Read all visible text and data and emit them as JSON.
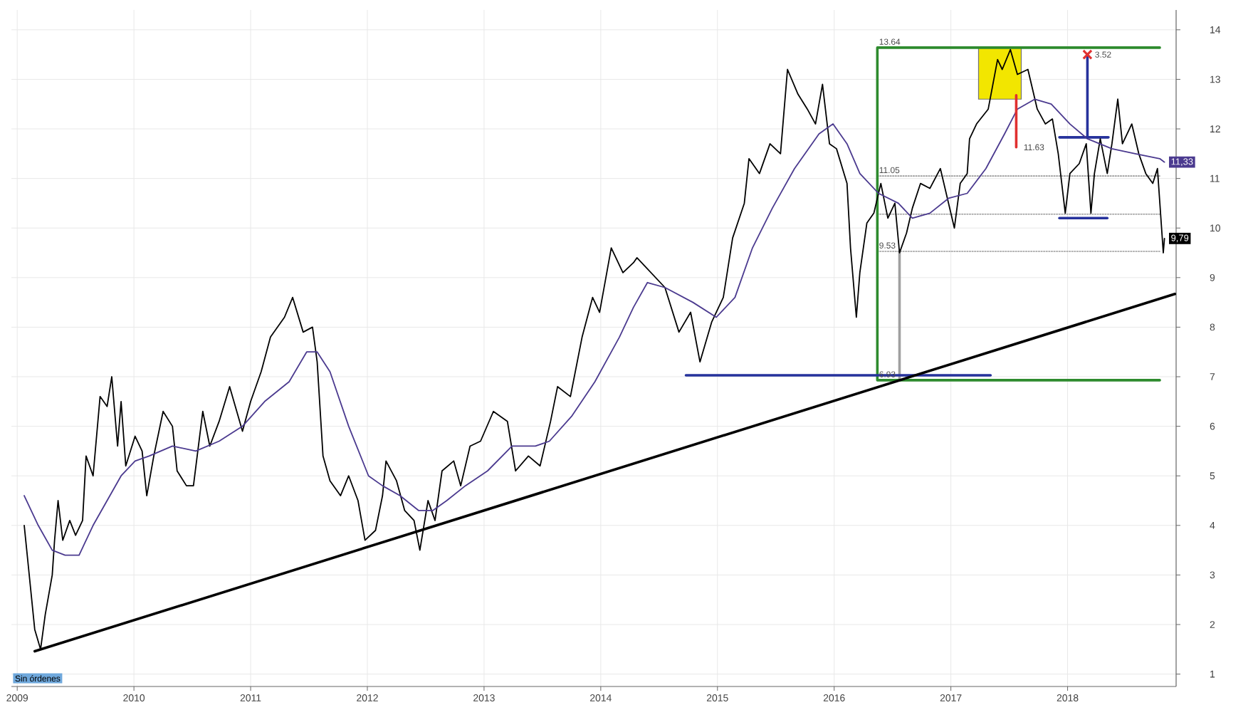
{
  "chart_data": {
    "type": "line",
    "xlim": [
      2008.95,
      2018.93
    ],
    "xticks": [
      2009,
      2010,
      2011,
      2012,
      2013,
      2014,
      2015,
      2016,
      2017,
      2018
    ],
    "ylim": [
      0.75,
      14.4
    ],
    "yticks": [
      1,
      2,
      3,
      4,
      5,
      6,
      7,
      8,
      9,
      10,
      11,
      12,
      13,
      14
    ],
    "grid": true,
    "annotations": [
      {
        "text": "13.64",
        "x": 2016.37,
        "y": 13.64
      },
      {
        "text": "11.05",
        "x": 2016.37,
        "y": 11.05
      },
      {
        "text": "9.53",
        "x": 2016.37,
        "y": 9.53
      },
      {
        "text": "6.93",
        "x": 2016.37,
        "y": 6.93
      },
      {
        "text": "11.63",
        "x": 2017.56,
        "y": 11.63
      },
      {
        "text": "3.52",
        "x": 2018.17,
        "y": 13.5
      },
      {
        "text": "11,33",
        "x": 2018.83,
        "y": 11.33
      },
      {
        "text": "9,79",
        "x": 2018.83,
        "y": 9.79
      },
      "Sin órdenes"
    ],
    "series": [
      {
        "type": "bar",
        "color": "#f2e600",
        "x": [
          2017.42
        ],
        "values": [
          1.04
        ],
        "base": [
          12.6
        ]
      },
      {
        "color": "#9a9a9a",
        "line_style": "dotted",
        "x": [
          2016.37,
          2018.79
        ],
        "values": [
          11.05,
          11.05
        ]
      },
      {
        "color": "#9a9a9a",
        "line_style": "dotted",
        "x": [
          2016.37,
          2018.79
        ],
        "values": [
          10.28,
          10.28
        ]
      },
      {
        "color": "#9a9a9a",
        "line_style": "dotted",
        "x": [
          2016.37,
          2018.79
        ],
        "values": [
          9.53,
          9.53
        ]
      },
      {
        "color": "#a0a0a0",
        "x": [
          2016.56,
          2016.56
        ],
        "values": [
          9.53,
          6.93
        ]
      },
      {
        "color": "#2e8b2e",
        "x": [
          2018.79,
          2016.37,
          2016.37,
          2018.79
        ],
        "values": [
          13.64,
          13.64,
          6.93,
          6.93
        ]
      },
      {
        "color": "#26329c",
        "x": [
          2014.73,
          2017.34
        ],
        "values": [
          7.03,
          7.03
        ]
      },
      {
        "color": "#26329c",
        "x": [
          2017.93,
          2018.35
        ],
        "values": [
          11.83,
          11.83
        ]
      },
      {
        "color": "#26329c",
        "x": [
          2017.93,
          2018.34
        ],
        "values": [
          10.2,
          10.2
        ]
      },
      {
        "color": "#000000",
        "x": [
          2009.06,
          2009.09,
          2009.15,
          2009.2,
          2009.24,
          2009.3,
          2009.32,
          2009.35,
          2009.39,
          2009.45,
          2009.5,
          2009.56,
          2009.59,
          2009.65,
          2009.71,
          2009.77,
          2009.81,
          2009.86,
          2009.89,
          2009.93,
          2010.01,
          2010.07,
          2010.11,
          2010.17,
          2010.25,
          2010.33,
          2010.37,
          2010.45,
          2010.51,
          2010.59,
          2010.65,
          2010.73,
          2010.82,
          2010.93,
          2011.0,
          2011.09,
          2011.17,
          2011.29,
          2011.36,
          2011.45,
          2011.53,
          2011.57,
          2011.62,
          2011.68,
          2011.77,
          2011.84,
          2011.92,
          2011.98,
          2012.07,
          2012.13,
          2012.16,
          2012.25,
          2012.32,
          2012.4,
          2012.45,
          2012.52,
          2012.58,
          2012.64,
          2012.74,
          2012.8,
          2012.88,
          2012.97,
          2013.08,
          2013.2,
          2013.27,
          2013.38,
          2013.48,
          2013.57,
          2013.63,
          2013.74,
          2013.84,
          2013.93,
          2013.99,
          2014.09,
          2014.19,
          2014.28,
          2014.31,
          2014.43,
          2014.55,
          2014.67,
          2014.77,
          2014.85,
          2014.95,
          2015.05,
          2015.13,
          2015.23,
          2015.27,
          2015.36,
          2015.45,
          2015.54,
          2015.6,
          2015.69,
          2015.77,
          2015.84,
          2015.9,
          2015.96,
          2016.02,
          2016.11,
          2016.14,
          2016.19,
          2016.22,
          2016.28,
          2016.34,
          2016.4,
          2016.46,
          2016.52,
          2016.56,
          2016.62,
          2016.67,
          2016.74,
          2016.82,
          2016.91,
          2016.97,
          2017.03,
          2017.08,
          2017.14,
          2017.16,
          2017.22,
          2017.32,
          2017.4,
          2017.44,
          2017.51,
          2017.57,
          2017.66,
          2017.74,
          2017.81,
          2017.87,
          2017.92,
          2017.98,
          2018.02,
          2018.1,
          2018.16,
          2018.2,
          2018.23,
          2018.28,
          2018.34,
          2018.38,
          2018.43,
          2018.47,
          2018.55,
          2018.61,
          2018.67,
          2018.73,
          2018.77,
          2018.82,
          2018.83
        ],
        "values": [
          4.0,
          3.3,
          1.9,
          1.5,
          2.2,
          3.0,
          3.7,
          4.5,
          3.7,
          4.1,
          3.8,
          4.1,
          5.4,
          5.0,
          6.6,
          6.4,
          7.0,
          5.6,
          6.5,
          5.2,
          5.8,
          5.5,
          4.6,
          5.4,
          6.3,
          6.0,
          5.1,
          4.8,
          4.8,
          6.3,
          5.6,
          6.1,
          6.8,
          5.9,
          6.5,
          7.1,
          7.8,
          8.2,
          8.6,
          7.9,
          8.0,
          7.3,
          5.4,
          4.9,
          4.6,
          5.0,
          4.5,
          3.7,
          3.9,
          4.6,
          5.3,
          4.9,
          4.3,
          4.1,
          3.5,
          4.5,
          4.1,
          5.1,
          5.3,
          4.8,
          5.6,
          5.7,
          6.3,
          6.1,
          5.1,
          5.4,
          5.2,
          6.1,
          6.8,
          6.6,
          7.8,
          8.6,
          8.3,
          9.6,
          9.1,
          9.3,
          9.4,
          9.1,
          8.8,
          7.9,
          8.3,
          7.3,
          8.1,
          8.6,
          9.8,
          10.5,
          11.4,
          11.1,
          11.7,
          11.5,
          13.2,
          12.7,
          12.4,
          12.1,
          12.9,
          11.7,
          11.6,
          10.9,
          9.6,
          8.2,
          9.1,
          10.1,
          10.3,
          10.9,
          10.2,
          10.5,
          9.5,
          9.9,
          10.4,
          10.9,
          10.8,
          11.2,
          10.6,
          10.0,
          10.9,
          11.1,
          11.8,
          12.1,
          12.4,
          13.4,
          13.2,
          13.6,
          13.1,
          13.2,
          12.4,
          12.1,
          12.2,
          11.5,
          10.3,
          11.1,
          11.3,
          11.7,
          10.3,
          11.1,
          11.8,
          11.1,
          11.7,
          12.6,
          11.7,
          12.1,
          11.5,
          11.1,
          10.9,
          11.2,
          9.5,
          9.79
        ]
      },
      {
        "color": "#4b3a8f",
        "x": [
          2009.06,
          2009.18,
          2009.3,
          2009.41,
          2009.53,
          2009.65,
          2009.77,
          2009.89,
          2010.01,
          2010.13,
          2010.33,
          2010.53,
          2010.73,
          2010.93,
          2011.12,
          2011.33,
          2011.48,
          2011.57,
          2011.68,
          2011.84,
          2012.01,
          2012.13,
          2012.28,
          2012.44,
          2012.56,
          2012.68,
          2012.84,
          2013.03,
          2013.24,
          2013.44,
          2013.56,
          2013.75,
          2013.95,
          2014.16,
          2014.28,
          2014.4,
          2014.55,
          2014.79,
          2014.99,
          2015.15,
          2015.3,
          2015.47,
          2015.66,
          2015.87,
          2015.99,
          2016.11,
          2016.22,
          2016.38,
          2016.55,
          2016.67,
          2016.82,
          2016.98,
          2017.14,
          2017.3,
          2017.46,
          2017.57,
          2017.72,
          2017.86,
          2018.02,
          2018.17,
          2018.38,
          2018.58,
          2018.79,
          2018.83
        ],
        "values": [
          4.6,
          4.0,
          3.5,
          3.4,
          3.4,
          4.0,
          4.5,
          5.0,
          5.3,
          5.4,
          5.6,
          5.5,
          5.7,
          6.0,
          6.5,
          6.9,
          7.5,
          7.5,
          7.1,
          6.0,
          5.0,
          4.8,
          4.6,
          4.3,
          4.3,
          4.5,
          4.8,
          5.1,
          5.6,
          5.6,
          5.7,
          6.2,
          6.9,
          7.8,
          8.4,
          8.9,
          8.8,
          8.5,
          8.2,
          8.6,
          9.6,
          10.4,
          11.2,
          11.9,
          12.1,
          11.7,
          11.1,
          10.7,
          10.5,
          10.2,
          10.3,
          10.6,
          10.7,
          11.2,
          11.9,
          12.4,
          12.6,
          12.5,
          12.1,
          11.8,
          11.6,
          11.5,
          11.4,
          11.33
        ]
      },
      {
        "color": "#000000",
        "x": [
          2009.15,
          2018.92
        ],
        "values": [
          1.46,
          8.67
        ]
      },
      {
        "color": "#e03030",
        "x": [
          2017.56,
          2017.56
        ],
        "values": [
          12.68,
          11.63
        ]
      },
      {
        "color": "#26329c",
        "x": [
          2018.17,
          2018.17
        ],
        "values": [
          13.5,
          11.83
        ]
      },
      {
        "type": "scatter",
        "color": "#e03030",
        "marker": "cross",
        "x": [
          2018.17
        ],
        "values": [
          13.5
        ]
      }
    ]
  }
}
